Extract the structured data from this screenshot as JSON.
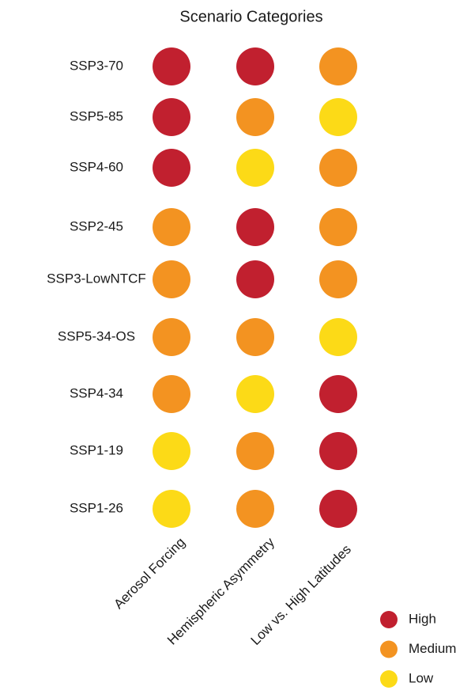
{
  "chart_data": {
    "type": "dot-matrix",
    "title": "Scenario Categories",
    "categories": [
      "SSP3-70",
      "SSP5-85",
      "SSP4-60",
      "SSP2-45",
      "SSP3-LowNTCF",
      "SSP5-34-OS",
      "SSP4-34",
      "SSP1-19",
      "SSP1-26"
    ],
    "columns": [
      "Aerosol Forcing",
      "Hemispheric Asymmetry",
      "Low vs. High Latitudes"
    ],
    "levels": [
      [
        "High",
        "High",
        "Medium"
      ],
      [
        "High",
        "Medium",
        "Low"
      ],
      [
        "High",
        "Low",
        "Medium"
      ],
      [
        "Medium",
        "High",
        "Medium"
      ],
      [
        "Medium",
        "High",
        "Medium"
      ],
      [
        "Medium",
        "Medium",
        "Low"
      ],
      [
        "Medium",
        "Low",
        "High"
      ],
      [
        "Low",
        "Medium",
        "High"
      ],
      [
        "Low",
        "Medium",
        "High"
      ]
    ],
    "legend": [
      {
        "name": "High",
        "color": "#c1202f"
      },
      {
        "name": "Medium",
        "color": "#f39321"
      },
      {
        "name": "Low",
        "color": "#fcda17"
      }
    ]
  }
}
